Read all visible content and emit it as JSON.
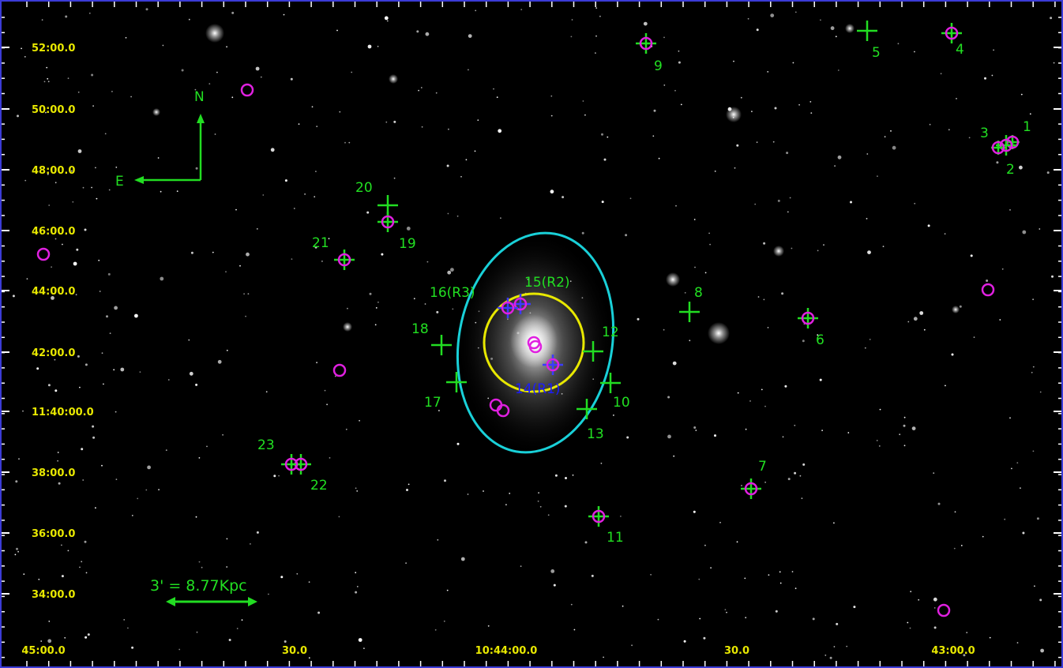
{
  "colors": {
    "background": "#000000",
    "frame": "#3b3bd6",
    "tick_text": "#e8e800",
    "source_label": "#22e022",
    "source_marker": "#22dd22",
    "blue_label": "#1b1bff",
    "blue_marker": "#3b3bff",
    "circle_marker": "#e020e0",
    "outer_ellipse": "#19d0d8",
    "inner_ellipse": "#e8e800"
  },
  "axes": {
    "dec_ticks": [
      "52:00.0",
      "50:00.0",
      "48:00.0",
      "46:00.0",
      "44:00.0",
      "42:00.0",
      "11:40:00.0",
      "38:00.0",
      "36:00.0",
      "34:00.0"
    ],
    "ra_ticks": [
      "45:00.0",
      "30.0",
      "10:44:00.0",
      "30.0",
      "43:00.0"
    ]
  },
  "compass": {
    "north_label": "N",
    "east_label": "E"
  },
  "scale_bar": {
    "label": "3' = 8.77Kpc"
  },
  "sources": [
    {
      "id": "1",
      "label": "1",
      "circled": true,
      "color": "green"
    },
    {
      "id": "2",
      "label": "2",
      "circled": true,
      "color": "green"
    },
    {
      "id": "3",
      "label": "3",
      "circled": true,
      "color": "green"
    },
    {
      "id": "4",
      "label": "4",
      "circled": true,
      "color": "green"
    },
    {
      "id": "5",
      "label": "5",
      "circled": false,
      "color": "green"
    },
    {
      "id": "6",
      "label": "6",
      "circled": true,
      "color": "green"
    },
    {
      "id": "7",
      "label": "7",
      "circled": true,
      "color": "green"
    },
    {
      "id": "8",
      "label": "8",
      "circled": false,
      "color": "green"
    },
    {
      "id": "9",
      "label": "9",
      "circled": true,
      "color": "green"
    },
    {
      "id": "10",
      "label": "10",
      "circled": false,
      "color": "green"
    },
    {
      "id": "11",
      "label": "11",
      "circled": true,
      "color": "green"
    },
    {
      "id": "12",
      "label": "12",
      "circled": false,
      "color": "green"
    },
    {
      "id": "13",
      "label": "13",
      "circled": false,
      "color": "green"
    },
    {
      "id": "14",
      "label": "14(R1)",
      "circled": true,
      "color": "blue"
    },
    {
      "id": "15",
      "label": "15(R2)",
      "circled": true,
      "color": "green"
    },
    {
      "id": "16",
      "label": "16(R3)",
      "circled": true,
      "color": "green"
    },
    {
      "id": "17",
      "label": "17",
      "circled": false,
      "color": "green"
    },
    {
      "id": "18",
      "label": "18",
      "circled": false,
      "color": "green"
    },
    {
      "id": "19",
      "label": "19",
      "circled": true,
      "color": "green"
    },
    {
      "id": "20",
      "label": "20",
      "circled": false,
      "color": "green"
    },
    {
      "id": "21",
      "label": "21",
      "circled": true,
      "color": "green"
    },
    {
      "id": "22",
      "label": "22",
      "circled": true,
      "color": "green"
    },
    {
      "id": "23",
      "label": "23",
      "circled": true,
      "color": "green"
    }
  ]
}
